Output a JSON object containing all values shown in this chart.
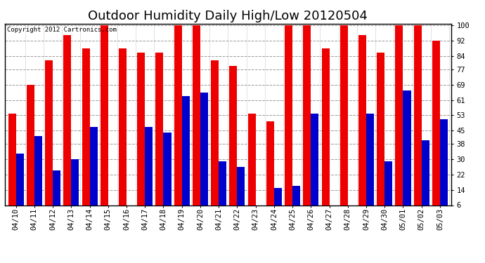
{
  "title": "Outdoor Humidity Daily High/Low 20120504",
  "copyright": "Copyright 2012 Cartronics.com",
  "categories": [
    "04/10",
    "04/11",
    "04/12",
    "04/13",
    "04/14",
    "04/15",
    "04/16",
    "04/17",
    "04/18",
    "04/19",
    "04/20",
    "04/21",
    "04/22",
    "04/23",
    "04/24",
    "04/25",
    "04/26",
    "04/27",
    "04/28",
    "04/29",
    "04/30",
    "05/01",
    "05/02",
    "05/03"
  ],
  "highs": [
    54,
    69,
    82,
    95,
    88,
    100,
    88,
    86,
    86,
    100,
    100,
    82,
    79,
    54,
    50,
    100,
    100,
    88,
    100,
    95,
    86,
    100,
    100,
    92
  ],
  "lows": [
    33,
    42,
    24,
    30,
    47,
    6,
    6,
    47,
    44,
    63,
    65,
    29,
    26,
    6,
    15,
    16,
    54,
    6,
    6,
    54,
    29,
    66,
    40,
    51
  ],
  "high_color": "#EE0000",
  "low_color": "#0000CC",
  "bg_color": "#FFFFFF",
  "plot_bg": "#FFFFFF",
  "grid_color": "#999999",
  "yticks": [
    6,
    14,
    22,
    30,
    38,
    45,
    53,
    61,
    69,
    77,
    84,
    92,
    100
  ],
  "ymin": 6,
  "ymax": 100,
  "title_fontsize": 13,
  "tick_fontsize": 7.5
}
